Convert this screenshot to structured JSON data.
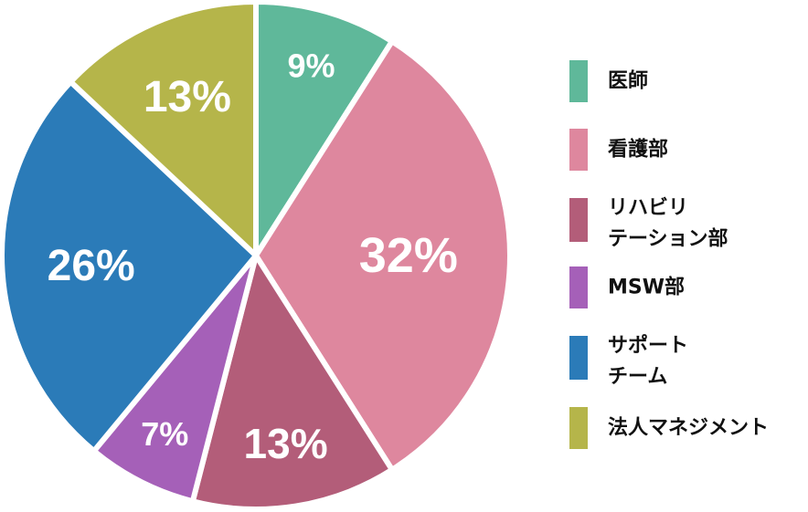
{
  "chart_data": {
    "type": "pie",
    "start_angle_deg": 0,
    "direction": "clockwise",
    "slices": [
      {
        "label": [
          "医師"
        ],
        "value": 9,
        "text": "9%",
        "color": "#5fb89a"
      },
      {
        "label": [
          "看護部"
        ],
        "value": 32,
        "text": "32%",
        "color": "#de879e"
      },
      {
        "label": [
          "リハビリ",
          "テーション部"
        ],
        "value": 13,
        "text": "13%",
        "color": "#b35d79"
      },
      {
        "label": [
          "MSW部"
        ],
        "value": 7,
        "text": "7%",
        "color": "#a560b8"
      },
      {
        "label": [
          "サポート",
          "チーム"
        ],
        "value": 26,
        "text": "26%",
        "color": "#2b7bb8"
      },
      {
        "label": [
          "法人マネジメント"
        ],
        "value": 13,
        "text": "13%",
        "color": "#b5b54a"
      }
    ],
    "legend_position": "right"
  }
}
